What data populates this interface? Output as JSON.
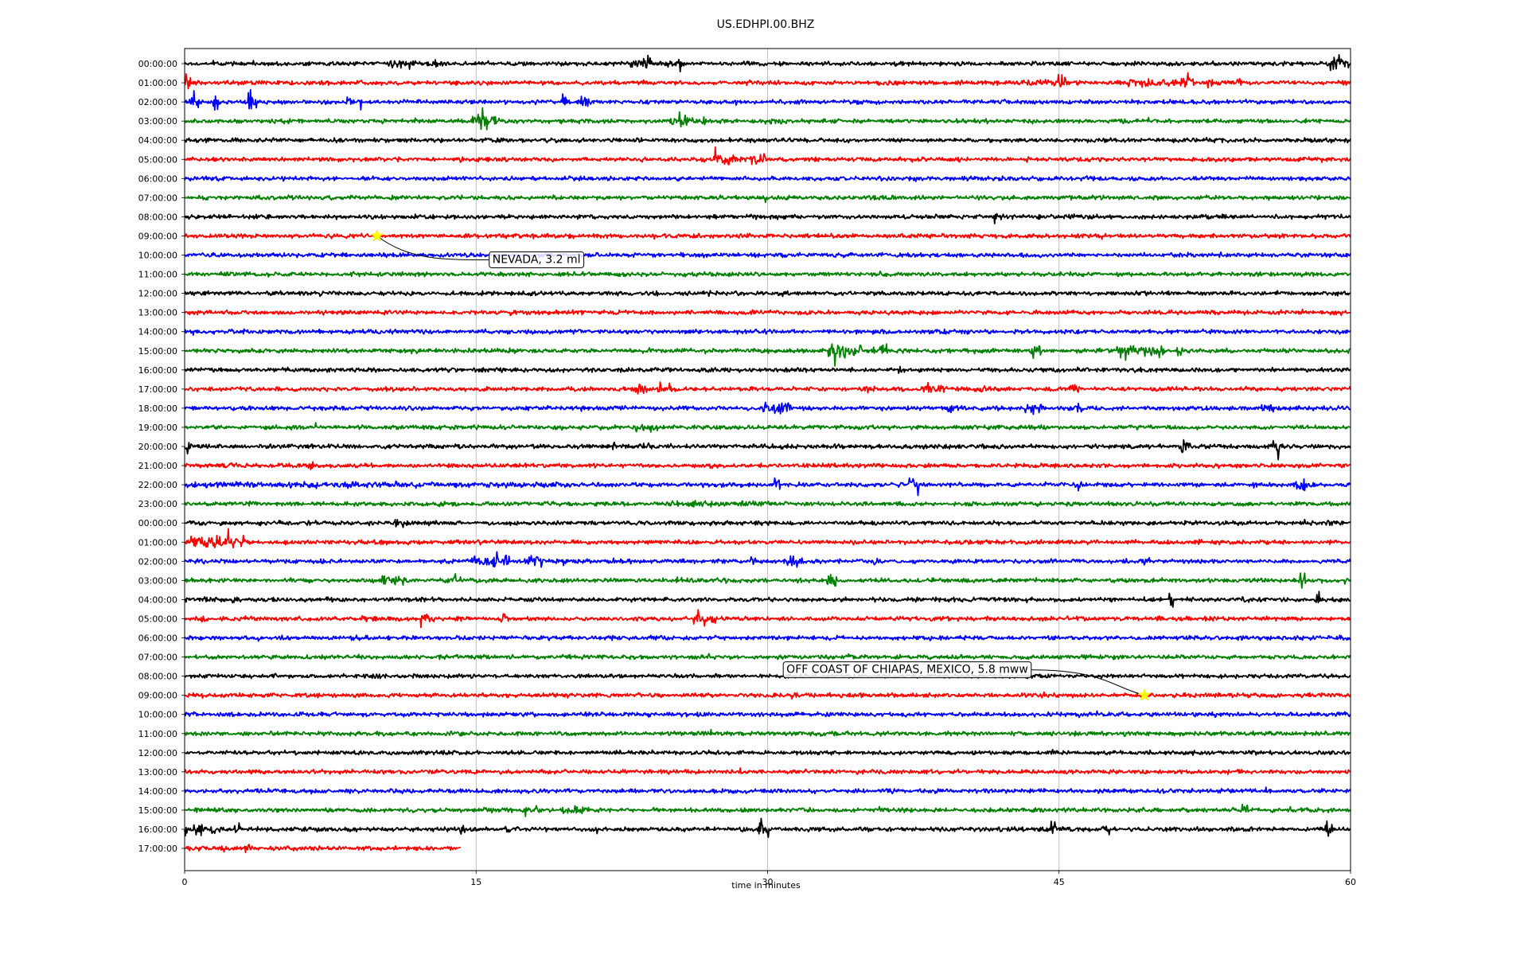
{
  "chart_data": {
    "type": "line",
    "title": "US.EDHPI.00.BHZ",
    "xlabel": "time in minutes",
    "ylabel": "",
    "xlim": [
      0,
      60
    ],
    "x_ticks": [
      "0",
      "15",
      "30",
      "45",
      "60"
    ],
    "grid": "vertical lines at 15, 30, 45",
    "line_colors": [
      "#000000",
      "#ff0000",
      "#0000ff",
      "#008000"
    ],
    "trace_labels": [
      "00:00:00",
      "01:00:00",
      "02:00:00",
      "03:00:00",
      "04:00:00",
      "05:00:00",
      "06:00:00",
      "07:00:00",
      "08:00:00",
      "09:00:00",
      "10:00:00",
      "11:00:00",
      "12:00:00",
      "13:00:00",
      "14:00:00",
      "15:00:00",
      "16:00:00",
      "17:00:00",
      "18:00:00",
      "19:00:00",
      "20:00:00",
      "21:00:00",
      "22:00:00",
      "23:00:00",
      "00:00:00",
      "01:00:00",
      "02:00:00",
      "03:00:00",
      "04:00:00",
      "05:00:00",
      "06:00:00",
      "07:00:00",
      "08:00:00",
      "09:00:00",
      "10:00:00",
      "11:00:00",
      "12:00:00",
      "13:00:00",
      "14:00:00",
      "15:00:00",
      "16:00:00",
      "17:00:00"
    ],
    "last_trace_end_minutes": 14.2,
    "events": [
      {
        "trace": 0,
        "bursts": [
          [
            11,
            1.2,
            2.5
          ],
          [
            13,
            0.8,
            2
          ],
          [
            12,
            0.6,
            1.5
          ],
          [
            23.5,
            1.2,
            2
          ],
          [
            25,
            1.2,
            2
          ],
          [
            59.2,
            0.8,
            4
          ],
          [
            59.8,
            0.3,
            2
          ]
        ]
      },
      {
        "trace": 1,
        "bursts": [
          [
            0.1,
            0.4,
            4
          ],
          [
            45.2,
            0.5,
            3
          ],
          [
            50,
            4,
            1.8
          ],
          [
            51.5,
            0.5,
            3
          ],
          [
            52.8,
            0.4,
            2.5
          ],
          [
            54,
            1,
            1.8
          ],
          [
            44,
            2,
            1.4
          ]
        ]
      },
      {
        "trace": 2,
        "bursts": [
          [
            0.5,
            0.5,
            3
          ],
          [
            1.6,
            0.3,
            3
          ],
          [
            3.5,
            0.5,
            3
          ],
          [
            8.4,
            0.4,
            2.5
          ],
          [
            9,
            0.3,
            2
          ],
          [
            19.5,
            0.3,
            3
          ],
          [
            20.5,
            0.6,
            2.5
          ]
        ]
      },
      {
        "trace": 3,
        "bursts": [
          [
            15,
            0.8,
            3.5
          ],
          [
            15.8,
            0.8,
            2.5
          ],
          [
            25.6,
            1.2,
            3
          ],
          [
            26.8,
            0.2,
            2.5
          ],
          [
            5,
            1,
            1.3
          ],
          [
            30,
            2,
            1.3
          ]
        ]
      },
      {
        "trace": 5,
        "bursts": [
          [
            14.3,
            0.5,
            1.6
          ],
          [
            27.8,
            1.2,
            3
          ],
          [
            29.4,
            1,
            2.5
          ]
        ]
      },
      {
        "trace": 8,
        "bursts": [
          [
            41.8,
            0.5,
            2
          ]
        ]
      },
      {
        "trace": 15,
        "bursts": [
          [
            34,
            1.8,
            3.5
          ],
          [
            35.8,
            0.8,
            2
          ],
          [
            43.8,
            0.6,
            4
          ],
          [
            49.2,
            2.5,
            3
          ],
          [
            51.2,
            0.3,
            2.5
          ]
        ]
      },
      {
        "trace": 16,
        "bursts": [
          [
            36.8,
            0.3,
            2.5
          ]
        ]
      },
      {
        "trace": 17,
        "bursts": [
          [
            23.5,
            0.6,
            2.5
          ],
          [
            24.7,
            0.8,
            3
          ],
          [
            35.2,
            0.8,
            2
          ],
          [
            38.5,
            1.5,
            2
          ],
          [
            41,
            1.5,
            1.5
          ],
          [
            45.8,
            0.5,
            2
          ]
        ]
      },
      {
        "trace": 18,
        "bursts": [
          [
            30.5,
            1.5,
            2.5
          ],
          [
            39.6,
            0.8,
            2
          ],
          [
            43.7,
            1,
            2
          ],
          [
            46,
            0.5,
            2
          ],
          [
            56,
            1.2,
            1.8
          ]
        ]
      },
      {
        "trace": 19,
        "bursts": [
          [
            23.8,
            1.2,
            2
          ]
        ]
      },
      {
        "trace": 20,
        "bursts": [
          [
            0.2,
            0.5,
            4
          ],
          [
            22.1,
            0.2,
            2.5
          ],
          [
            23.8,
            0.8,
            1.5
          ],
          [
            51.5,
            0.5,
            3.5
          ],
          [
            56.1,
            0.5,
            3.5
          ]
        ]
      },
      {
        "trace": 21,
        "bursts": [
          [
            6.5,
            0.3,
            2.5
          ],
          [
            2.5,
            0.5,
            1.3
          ],
          [
            35,
            1,
            1.2
          ]
        ]
      },
      {
        "trace": 22,
        "bursts": [
          [
            10,
            20,
            1.4
          ],
          [
            30.5,
            0.3,
            3.5
          ],
          [
            37.5,
            0.6,
            3.5
          ],
          [
            46,
            0.3,
            2
          ],
          [
            57.4,
            0.5,
            3
          ]
        ]
      },
      {
        "trace": 23,
        "bursts": [
          [
            13.4,
            1,
            1.3
          ],
          [
            27.5,
            5,
            1.4
          ],
          [
            3.5,
            0.3,
            1.8
          ]
        ]
      },
      {
        "trace": 24,
        "bursts": [
          [
            11,
            0.5,
            2
          ],
          [
            57.5,
            0.3,
            3
          ],
          [
            59,
            0.3,
            2.5
          ]
        ]
      },
      {
        "trace": 25,
        "bursts": [
          [
            1.5,
            2.5,
            3
          ],
          [
            5.5,
            0.3,
            2
          ],
          [
            3,
            0.2,
            2.5
          ]
        ]
      },
      {
        "trace": 26,
        "bursts": [
          [
            15.5,
            1.5,
            2.5
          ],
          [
            16.5,
            0.4,
            3
          ],
          [
            18,
            1,
            2.5
          ],
          [
            29.3,
            0.3,
            2
          ],
          [
            31.3,
            1,
            3
          ],
          [
            35.7,
            0.5,
            2
          ],
          [
            49.5,
            0.8,
            1.8
          ]
        ]
      },
      {
        "trace": 27,
        "bursts": [
          [
            10.8,
            1.5,
            2.2
          ],
          [
            14,
            0.4,
            3.5
          ],
          [
            25.5,
            0.3,
            2
          ],
          [
            33.3,
            0.5,
            3.5
          ],
          [
            57.5,
            0.4,
            3
          ],
          [
            59.8,
            0.2,
            2
          ]
        ]
      },
      {
        "trace": 28,
        "bursts": [
          [
            1,
            0.3,
            2
          ],
          [
            2.6,
            0.3,
            2
          ],
          [
            50.8,
            0.3,
            2.5
          ],
          [
            54.5,
            0.4,
            2.2
          ],
          [
            58.3,
            0.3,
            3
          ]
        ]
      },
      {
        "trace": 29,
        "bursts": [
          [
            1,
            0.3,
            2.5
          ],
          [
            9.5,
            0.8,
            1.5
          ],
          [
            12.5,
            0.8,
            2
          ],
          [
            16.4,
            0.5,
            2.5
          ],
          [
            26.8,
            1.2,
            3
          ]
        ]
      },
      {
        "trace": 39,
        "bursts": [
          [
            17.8,
            0.6,
            2
          ],
          [
            20.2,
            1.5,
            2
          ],
          [
            29,
            0.5,
            1.5
          ],
          [
            35.8,
            0.5,
            2
          ],
          [
            54.5,
            0.5,
            2.5
          ],
          [
            57,
            0.3,
            1.8
          ]
        ]
      },
      {
        "trace": 40,
        "bursts": [
          [
            0.3,
            1.5,
            3
          ],
          [
            1.6,
            0.5,
            3
          ],
          [
            2.6,
            0.5,
            2.5
          ],
          [
            14.3,
            0.3,
            2.5
          ],
          [
            16.6,
            0.3,
            2
          ],
          [
            29.8,
            0.5,
            3.5
          ],
          [
            44.7,
            0.3,
            4
          ],
          [
            47.4,
            0.4,
            3
          ],
          [
            54,
            0.3,
            2
          ],
          [
            58.9,
            0.4,
            3
          ]
        ]
      },
      {
        "trace": 41,
        "bursts": [
          [
            3.2,
            0.3,
            3
          ],
          [
            5.3,
            0.2,
            1.5
          ]
        ]
      }
    ],
    "annotations": [
      {
        "label": "NEVADA, 3.2 ml",
        "trace": 9,
        "minute": 9.9
      },
      {
        "label": "OFF COAST OF CHIAPAS, MEXICO, 5.8 mww",
        "trace": 33,
        "minute": 49.4
      }
    ]
  }
}
